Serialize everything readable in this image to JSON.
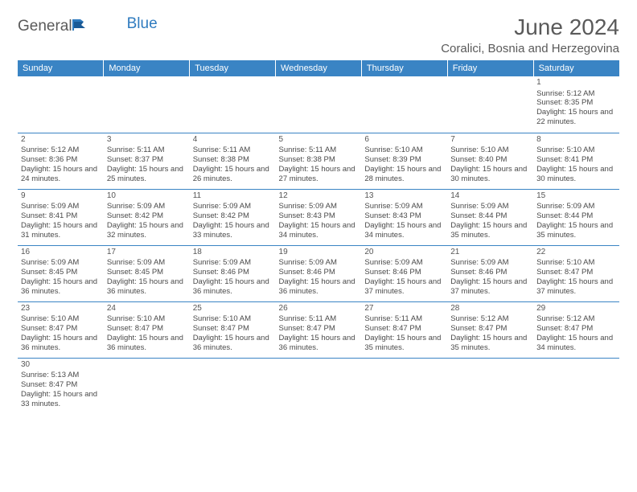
{
  "logo": {
    "text1": "General",
    "text2": "Blue"
  },
  "title": "June 2024",
  "location": "Coralici, Bosnia and Herzegovina",
  "colors": {
    "header_bg": "#3a84c4",
    "header_text": "#ffffff",
    "border": "#3a84c4",
    "logo_gray": "#5a5a5a",
    "logo_blue": "#2f7bbf",
    "text": "#4a4a4a"
  },
  "day_headers": [
    "Sunday",
    "Monday",
    "Tuesday",
    "Wednesday",
    "Thursday",
    "Friday",
    "Saturday"
  ],
  "weeks": [
    [
      null,
      null,
      null,
      null,
      null,
      null,
      {
        "n": "1",
        "sr": "Sunrise: 5:12 AM",
        "ss": "Sunset: 8:35 PM",
        "dl": "Daylight: 15 hours and 22 minutes."
      }
    ],
    [
      {
        "n": "2",
        "sr": "Sunrise: 5:12 AM",
        "ss": "Sunset: 8:36 PM",
        "dl": "Daylight: 15 hours and 24 minutes."
      },
      {
        "n": "3",
        "sr": "Sunrise: 5:11 AM",
        "ss": "Sunset: 8:37 PM",
        "dl": "Daylight: 15 hours and 25 minutes."
      },
      {
        "n": "4",
        "sr": "Sunrise: 5:11 AM",
        "ss": "Sunset: 8:38 PM",
        "dl": "Daylight: 15 hours and 26 minutes."
      },
      {
        "n": "5",
        "sr": "Sunrise: 5:11 AM",
        "ss": "Sunset: 8:38 PM",
        "dl": "Daylight: 15 hours and 27 minutes."
      },
      {
        "n": "6",
        "sr": "Sunrise: 5:10 AM",
        "ss": "Sunset: 8:39 PM",
        "dl": "Daylight: 15 hours and 28 minutes."
      },
      {
        "n": "7",
        "sr": "Sunrise: 5:10 AM",
        "ss": "Sunset: 8:40 PM",
        "dl": "Daylight: 15 hours and 30 minutes."
      },
      {
        "n": "8",
        "sr": "Sunrise: 5:10 AM",
        "ss": "Sunset: 8:41 PM",
        "dl": "Daylight: 15 hours and 30 minutes."
      }
    ],
    [
      {
        "n": "9",
        "sr": "Sunrise: 5:09 AM",
        "ss": "Sunset: 8:41 PM",
        "dl": "Daylight: 15 hours and 31 minutes."
      },
      {
        "n": "10",
        "sr": "Sunrise: 5:09 AM",
        "ss": "Sunset: 8:42 PM",
        "dl": "Daylight: 15 hours and 32 minutes."
      },
      {
        "n": "11",
        "sr": "Sunrise: 5:09 AM",
        "ss": "Sunset: 8:42 PM",
        "dl": "Daylight: 15 hours and 33 minutes."
      },
      {
        "n": "12",
        "sr": "Sunrise: 5:09 AM",
        "ss": "Sunset: 8:43 PM",
        "dl": "Daylight: 15 hours and 34 minutes."
      },
      {
        "n": "13",
        "sr": "Sunrise: 5:09 AM",
        "ss": "Sunset: 8:43 PM",
        "dl": "Daylight: 15 hours and 34 minutes."
      },
      {
        "n": "14",
        "sr": "Sunrise: 5:09 AM",
        "ss": "Sunset: 8:44 PM",
        "dl": "Daylight: 15 hours and 35 minutes."
      },
      {
        "n": "15",
        "sr": "Sunrise: 5:09 AM",
        "ss": "Sunset: 8:44 PM",
        "dl": "Daylight: 15 hours and 35 minutes."
      }
    ],
    [
      {
        "n": "16",
        "sr": "Sunrise: 5:09 AM",
        "ss": "Sunset: 8:45 PM",
        "dl": "Daylight: 15 hours and 36 minutes."
      },
      {
        "n": "17",
        "sr": "Sunrise: 5:09 AM",
        "ss": "Sunset: 8:45 PM",
        "dl": "Daylight: 15 hours and 36 minutes."
      },
      {
        "n": "18",
        "sr": "Sunrise: 5:09 AM",
        "ss": "Sunset: 8:46 PM",
        "dl": "Daylight: 15 hours and 36 minutes."
      },
      {
        "n": "19",
        "sr": "Sunrise: 5:09 AM",
        "ss": "Sunset: 8:46 PM",
        "dl": "Daylight: 15 hours and 36 minutes."
      },
      {
        "n": "20",
        "sr": "Sunrise: 5:09 AM",
        "ss": "Sunset: 8:46 PM",
        "dl": "Daylight: 15 hours and 37 minutes."
      },
      {
        "n": "21",
        "sr": "Sunrise: 5:09 AM",
        "ss": "Sunset: 8:46 PM",
        "dl": "Daylight: 15 hours and 37 minutes."
      },
      {
        "n": "22",
        "sr": "Sunrise: 5:10 AM",
        "ss": "Sunset: 8:47 PM",
        "dl": "Daylight: 15 hours and 37 minutes."
      }
    ],
    [
      {
        "n": "23",
        "sr": "Sunrise: 5:10 AM",
        "ss": "Sunset: 8:47 PM",
        "dl": "Daylight: 15 hours and 36 minutes."
      },
      {
        "n": "24",
        "sr": "Sunrise: 5:10 AM",
        "ss": "Sunset: 8:47 PM",
        "dl": "Daylight: 15 hours and 36 minutes."
      },
      {
        "n": "25",
        "sr": "Sunrise: 5:10 AM",
        "ss": "Sunset: 8:47 PM",
        "dl": "Daylight: 15 hours and 36 minutes."
      },
      {
        "n": "26",
        "sr": "Sunrise: 5:11 AM",
        "ss": "Sunset: 8:47 PM",
        "dl": "Daylight: 15 hours and 36 minutes."
      },
      {
        "n": "27",
        "sr": "Sunrise: 5:11 AM",
        "ss": "Sunset: 8:47 PM",
        "dl": "Daylight: 15 hours and 35 minutes."
      },
      {
        "n": "28",
        "sr": "Sunrise: 5:12 AM",
        "ss": "Sunset: 8:47 PM",
        "dl": "Daylight: 15 hours and 35 minutes."
      },
      {
        "n": "29",
        "sr": "Sunrise: 5:12 AM",
        "ss": "Sunset: 8:47 PM",
        "dl": "Daylight: 15 hours and 34 minutes."
      }
    ],
    [
      {
        "n": "30",
        "sr": "Sunrise: 5:13 AM",
        "ss": "Sunset: 8:47 PM",
        "dl": "Daylight: 15 hours and 33 minutes."
      },
      null,
      null,
      null,
      null,
      null,
      null
    ]
  ]
}
